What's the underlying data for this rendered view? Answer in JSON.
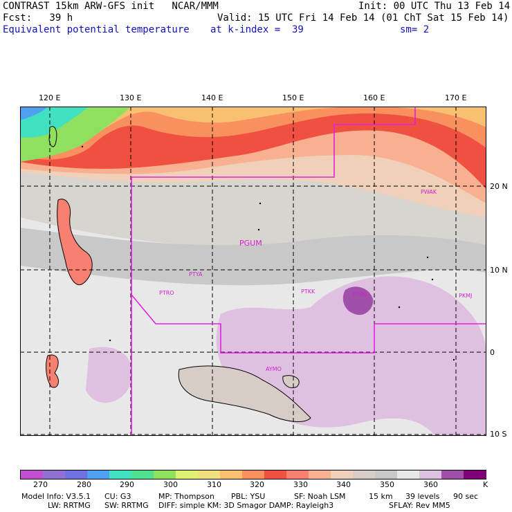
{
  "header": {
    "title": "CONTRAST 15km ARW-GFS init   NCAR/MMM",
    "init": "Init: 00 UTC Thu 13 Feb 14",
    "fcst": "Fcst:   39 h",
    "valid": "Valid: 15 UTC Fri 14 Feb 14 (01 ChT Sat 15 Feb 14)",
    "field": "Equivalent potential temperature",
    "level": "at k-index =  39",
    "smooth": "sm= 2"
  },
  "map": {
    "lon_labels": [
      "120 E",
      "130 E",
      "140 E",
      "150 E",
      "160 E",
      "170 E"
    ],
    "lat_labels": [
      "20 N",
      "10 N",
      "0",
      "10 S"
    ],
    "stations": [
      "PGUM",
      "PTYA",
      "PTRO",
      "PTKK",
      "PTPN",
      "PKMJ",
      "PWAK",
      "AYMO"
    ],
    "boundary_color": "#e020e0"
  },
  "colorbar": {
    "labels": [
      "270",
      "280",
      "290",
      "300",
      "310",
      "320",
      "330",
      "340",
      "350",
      "360"
    ],
    "unit": "K",
    "colors": [
      "#c050d0",
      "#9070d0",
      "#7070e0",
      "#50a0f0",
      "#40e0c0",
      "#50e090",
      "#90e060",
      "#e0f070",
      "#f0e080",
      "#f8c070",
      "#f89060",
      "#f05040",
      "#f88070",
      "#f8b090",
      "#f0d0b8",
      "#d8cdc6",
      "#c8c8c8",
      "#e8e8e8",
      "#e0c0e0",
      "#a050a8",
      "#800078"
    ]
  },
  "footer": {
    "line1": [
      "Model Info: V3.5.1",
      "CU: G3",
      "MP: Thompson",
      "PBL: YSU",
      "SF: Noah LSM",
      "15 km",
      "39 levels",
      "90 sec"
    ],
    "line2": [
      "LW: RRTMG",
      "SW: RRTMG",
      "DIFF: simple KM: 3D Smagor DAMP: Rayleigh3",
      "SFLAY: Rev MM5"
    ]
  }
}
